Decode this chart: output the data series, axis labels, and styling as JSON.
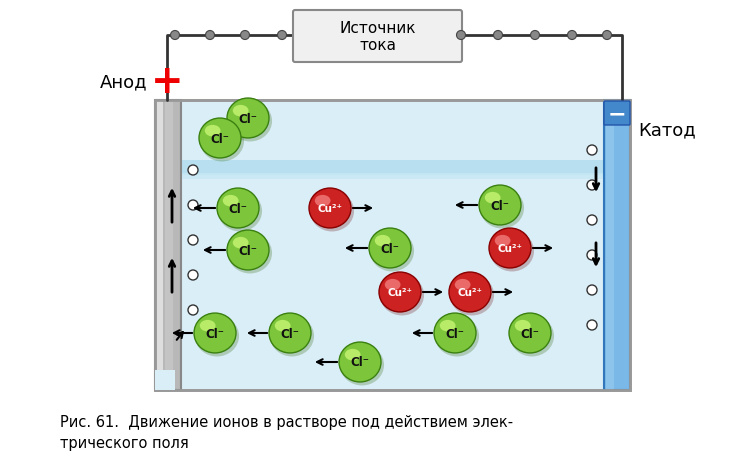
{
  "title": "Рис. 61.  Движение ионов в растворе под действием элек-\nтрического поля",
  "source_label": "Источник\nтока",
  "anode_label": "Анод",
  "cathode_label": "Катод",
  "cl_color": "#7dc63b",
  "cu_color": "#cc2222",
  "cl_label": "Cl⁻",
  "cu_label": "Cu²⁺",
  "bg_color": "#ffffff",
  "water_color": "#b8dff0",
  "tank_fill": "#daeef8",
  "tank_edge": "#aaaaaa",
  "anode_fill": [
    "#d8d8d8",
    "#b8b8b8",
    "#a0a0a0"
  ],
  "cathode_fill": "#7ab8e8",
  "wire_color": "#333333",
  "src_box_fill": "#f0f0f0",
  "src_box_edge": "#888888",
  "plus_color": "#ee0000",
  "minus_color": "#ffffff",
  "minus_box_fill": "#4488cc",
  "circle_fill": "#ffffff",
  "circle_edge": "#333333"
}
